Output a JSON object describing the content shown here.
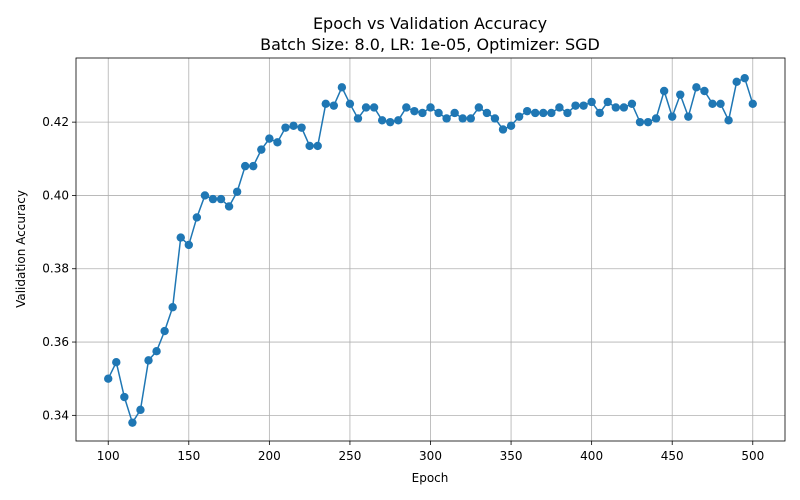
{
  "chart_data": {
    "type": "line",
    "title": "Epoch vs Validation Accuracy",
    "subtitle": "Batch Size: 8.0, LR: 1e-05, Optimizer: SGD",
    "xlabel": "Epoch",
    "ylabel": "Validation Accuracy",
    "xlim": [
      80,
      520
    ],
    "ylim": [
      0.333,
      0.4375
    ],
    "xticks": [
      100,
      150,
      200,
      250,
      300,
      350,
      400,
      450,
      500
    ],
    "yticks": [
      0.34,
      0.36,
      0.38,
      0.4,
      0.42
    ],
    "ytick_labels": [
      "0.34",
      "0.36",
      "0.38",
      "0.40",
      "0.42"
    ],
    "grid": true,
    "color": "#1f77b4",
    "series": [
      {
        "name": "Validation Accuracy",
        "x": [
          100,
          105,
          110,
          115,
          120,
          125,
          130,
          135,
          140,
          145,
          150,
          155,
          160,
          165,
          170,
          175,
          180,
          185,
          190,
          195,
          200,
          205,
          210,
          215,
          220,
          225,
          230,
          235,
          240,
          245,
          250,
          255,
          260,
          265,
          270,
          275,
          280,
          285,
          290,
          295,
          300,
          305,
          310,
          315,
          320,
          325,
          330,
          335,
          340,
          345,
          350,
          355,
          360,
          365,
          370,
          375,
          380,
          385,
          390,
          395,
          400,
          405,
          410,
          415,
          420,
          425,
          430,
          435,
          440,
          445,
          450,
          455,
          460,
          465,
          470,
          475,
          480,
          485,
          490,
          495,
          500
        ],
        "values": [
          0.35,
          0.3545,
          0.345,
          0.338,
          0.3415,
          0.355,
          0.3575,
          0.363,
          0.3695,
          0.3885,
          0.3865,
          0.394,
          0.4,
          0.399,
          0.399,
          0.397,
          0.401,
          0.408,
          0.408,
          0.4125,
          0.4155,
          0.4145,
          0.4185,
          0.419,
          0.4185,
          0.4135,
          0.4135,
          0.425,
          0.4245,
          0.4295,
          0.425,
          0.421,
          0.424,
          0.424,
          0.4205,
          0.42,
          0.4205,
          0.424,
          0.423,
          0.4225,
          0.424,
          0.4225,
          0.421,
          0.4225,
          0.421,
          0.421,
          0.424,
          0.4225,
          0.421,
          0.418,
          0.419,
          0.4215,
          0.423,
          0.4225,
          0.4225,
          0.4225,
          0.424,
          0.4225,
          0.4245,
          0.4245,
          0.4255,
          0.4225,
          0.4255,
          0.424,
          0.424,
          0.425,
          0.42,
          0.42,
          0.421,
          0.4285,
          0.4215,
          0.4275,
          0.4215,
          0.4295,
          0.4285,
          0.425,
          0.425,
          0.4205,
          0.431,
          0.432,
          0.425
        ]
      }
    ]
  }
}
